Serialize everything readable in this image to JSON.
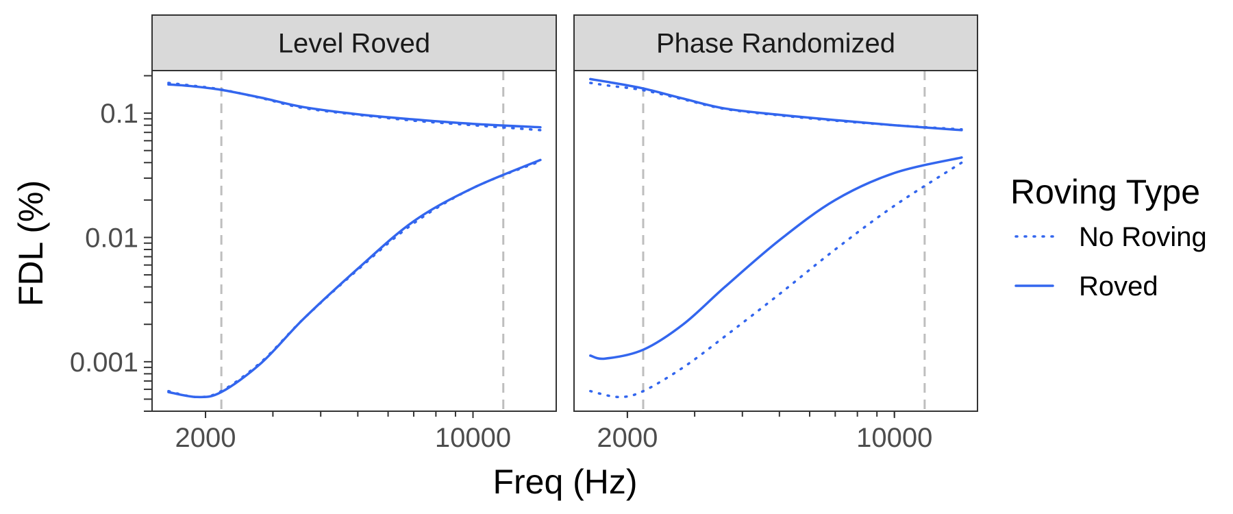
{
  "chart_data": {
    "type": "line",
    "x_scale": "log10",
    "y_scale": "log10",
    "xlabel": "Freq (Hz)",
    "ylabel": "FDL (%)",
    "xlim": [
      1450,
      16500
    ],
    "ylim": [
      0.0004,
      0.22
    ],
    "x_ticks": [
      {
        "value": 2000,
        "label": "2000"
      },
      {
        "value": 10000,
        "label": "10000"
      }
    ],
    "y_ticks": [
      {
        "value": 0.1,
        "label": "0.1"
      },
      {
        "value": 0.01,
        "label": "0.01"
      },
      {
        "value": 0.001,
        "label": "0.001"
      }
    ],
    "vlines": [
      2200,
      12000
    ],
    "color": "#3366ee",
    "legend": {
      "title": "Roving Type",
      "position": "right",
      "entries": [
        {
          "label": "No Roving",
          "linetype": "dotted"
        },
        {
          "label": "Roved",
          "linetype": "solid"
        }
      ]
    },
    "panels": [
      {
        "title": "Level Roved",
        "series": [
          {
            "group": "upper",
            "roving": "No Roving",
            "x": [
              1600,
              1800,
              2200,
              2800,
              3600,
              5000,
              7000,
              10000,
              15000
            ],
            "y": [
              0.175,
              0.168,
              0.155,
              0.132,
              0.11,
              0.097,
              0.087,
              0.08,
              0.073
            ]
          },
          {
            "group": "upper",
            "roving": "Roved",
            "x": [
              1600,
              1800,
              2200,
              2800,
              3600,
              5000,
              7000,
              10000,
              15000
            ],
            "y": [
              0.17,
              0.166,
              0.154,
              0.133,
              0.112,
              0.098,
              0.089,
              0.082,
              0.077
            ]
          },
          {
            "group": "lower",
            "roving": "No Roving",
            "x": [
              1600,
              1900,
              2200,
              2800,
              3600,
              5000,
              7000,
              10000,
              15000
            ],
            "y": [
              0.00058,
              0.00052,
              0.00058,
              0.001,
              0.0022,
              0.0055,
              0.013,
              0.025,
              0.041
            ]
          },
          {
            "group": "lower",
            "roving": "Roved",
            "x": [
              1600,
              1900,
              2200,
              2800,
              3600,
              5000,
              7000,
              10000,
              15000
            ],
            "y": [
              0.00057,
              0.00052,
              0.00057,
              0.00098,
              0.0022,
              0.0056,
              0.0135,
              0.025,
              0.042
            ]
          }
        ]
      },
      {
        "title": "Phase Randomized",
        "series": [
          {
            "group": "upper",
            "roving": "No Roving",
            "x": [
              1600,
              1800,
              2200,
              2800,
              3600,
              5000,
              7000,
              10000,
              15000
            ],
            "y": [
              0.175,
              0.166,
              0.153,
              0.129,
              0.108,
              0.096,
              0.087,
              0.08,
              0.074
            ]
          },
          {
            "group": "upper",
            "roving": "Roved",
            "x": [
              1600,
              1800,
              2200,
              2800,
              3600,
              5000,
              7000,
              10000,
              15000
            ],
            "y": [
              0.188,
              0.177,
              0.158,
              0.131,
              0.109,
              0.097,
              0.088,
              0.08,
              0.073
            ]
          },
          {
            "group": "lower",
            "roving": "No Roving",
            "x": [
              1600,
              1900,
              2200,
              2800,
              3600,
              5000,
              7000,
              10000,
              15000
            ],
            "y": [
              0.00058,
              0.00052,
              0.00058,
              0.0009,
              0.0016,
              0.0035,
              0.008,
              0.018,
              0.04
            ]
          },
          {
            "group": "lower",
            "roving": "Roved",
            "x": [
              1600,
              1750,
              2200,
              2800,
              3600,
              5000,
              7000,
              10000,
              15000
            ],
            "y": [
              0.00112,
              0.00106,
              0.00125,
              0.002,
              0.004,
              0.0095,
              0.02,
              0.033,
              0.044
            ]
          }
        ]
      }
    ]
  }
}
